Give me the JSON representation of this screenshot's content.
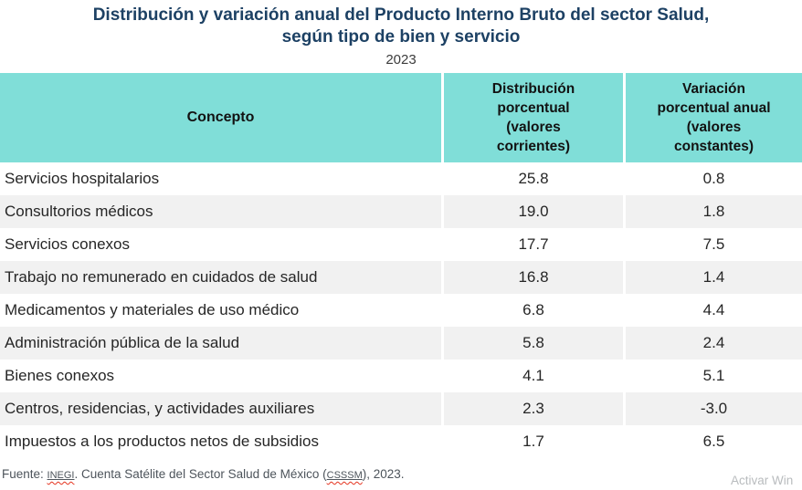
{
  "title": {
    "line1": "Distribución y variación anual del Producto Interno Bruto del sector Salud,",
    "line2": "según tipo de bien y servicio",
    "year": "2023",
    "color": "#1d4164"
  },
  "table": {
    "header_bg": "#80ded8",
    "zebra_bg": "#f1f1f1",
    "columns": [
      {
        "id": "concepto",
        "label": "Concepto"
      },
      {
        "id": "distribucion",
        "label": "Distribución\nporcentual\n(valores\ncorrientes)"
      },
      {
        "id": "variacion",
        "label": "Variación\nporcentual anual\n(valores\nconstantes)"
      }
    ],
    "rows": [
      {
        "concepto": "Servicios hospitalarios",
        "distribucion": "25.8",
        "variacion": "0.8"
      },
      {
        "concepto": "Consultorios médicos",
        "distribucion": "19.0",
        "variacion": "1.8"
      },
      {
        "concepto": "Servicios conexos",
        "distribucion": "17.7",
        "variacion": "7.5"
      },
      {
        "concepto": "Trabajo no remunerado en cuidados de salud",
        "distribucion": "16.8",
        "variacion": "1.4"
      },
      {
        "concepto": "Medicamentos y materiales de uso médico",
        "distribucion": "6.8",
        "variacion": "4.4"
      },
      {
        "concepto": "Administración pública de la salud",
        "distribucion": "5.8",
        "variacion": "2.4"
      },
      {
        "concepto": "Bienes conexos",
        "distribucion": "4.1",
        "variacion": "5.1"
      },
      {
        "concepto": "Centros, residencias, y actividades auxiliares",
        "distribucion": "2.3",
        "variacion": "-3.0"
      },
      {
        "concepto": "Impuestos a los productos netos de subsidios",
        "distribucion": "1.7",
        "variacion": "6.5"
      }
    ]
  },
  "footer": {
    "prefix": "Fuente: ",
    "source_link": "INEGI",
    "middle": ". Cuenta Satélite del Sector Salud de México (",
    "acronym_link": "CSSSM",
    "suffix": "), 2023.",
    "color": "#4d545b"
  },
  "watermark": {
    "text": "Activar Win",
    "color": "#b9bcbe"
  },
  "chart_data": {
    "type": "table",
    "title": "Distribución y variación anual del Producto Interno Bruto del sector Salud, según tipo de bien y servicio",
    "subtitle": "2023",
    "columns": [
      "Concepto",
      "Distribución porcentual (valores corrientes)",
      "Variación porcentual anual (valores constantes)"
    ],
    "rows": [
      [
        "Servicios hospitalarios",
        25.8,
        0.8
      ],
      [
        "Consultorios médicos",
        19.0,
        1.8
      ],
      [
        "Servicios conexos",
        17.7,
        7.5
      ],
      [
        "Trabajo no remunerado en cuidados de salud",
        16.8,
        1.4
      ],
      [
        "Medicamentos y materiales de uso médico",
        6.8,
        4.4
      ],
      [
        "Administración pública de la salud",
        5.8,
        2.4
      ],
      [
        "Bienes conexos",
        4.1,
        5.1
      ],
      [
        "Centros, residencias, y actividades auxiliares",
        2.3,
        -3.0
      ],
      [
        "Impuestos a los productos netos de subsidios",
        1.7,
        6.5
      ]
    ],
    "legend_position": "none",
    "grid": false,
    "source": "Fuente: INEGI. Cuenta Satélite del Sector Salud de México (CSSSM), 2023."
  }
}
